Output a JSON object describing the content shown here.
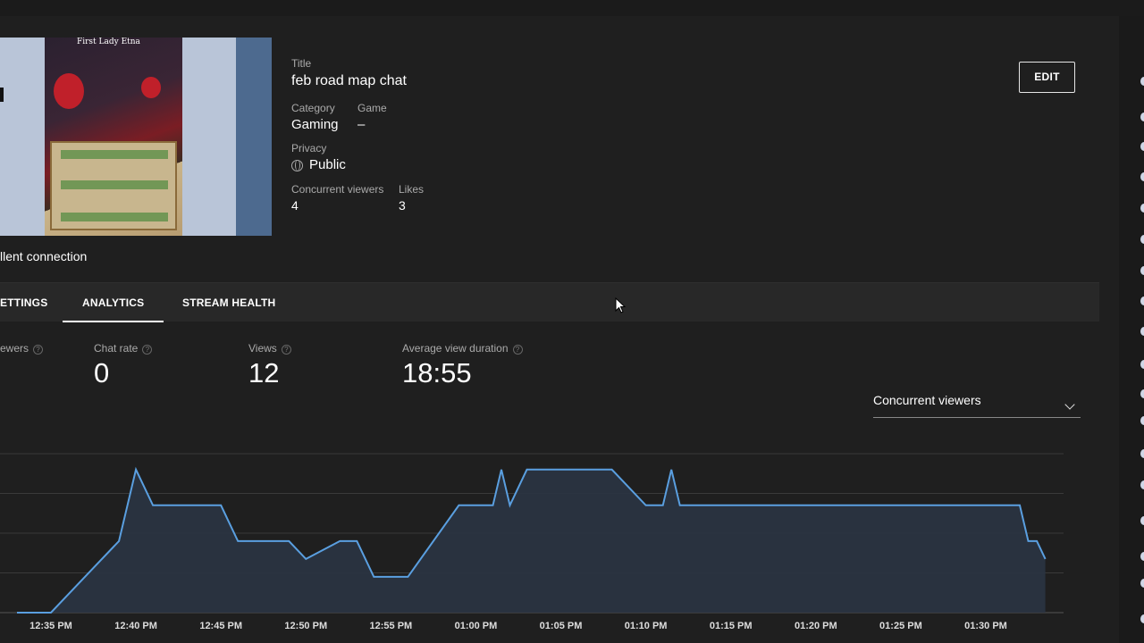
{
  "stream": {
    "title_label": "Title",
    "title": "feb road map chat",
    "category_label": "Category",
    "category": "Gaming",
    "game_label": "Game",
    "game": "–",
    "privacy_label": "Privacy",
    "privacy": "Public",
    "concurrent_label": "Concurrent viewers",
    "concurrent": "4",
    "likes_label": "Likes",
    "likes": "3",
    "edit_label": "EDIT",
    "connection": "llent connection",
    "thumbnail_caption": "First Lady Etna"
  },
  "tabs": [
    {
      "label": "ETTINGS"
    },
    {
      "label": "ANALYTICS",
      "active": true
    },
    {
      "label": "STREAM HEALTH"
    }
  ],
  "stats": [
    {
      "label": "ewers",
      "value": ""
    },
    {
      "label": "Chat rate",
      "value": "0"
    },
    {
      "label": "Views",
      "value": "12"
    },
    {
      "label": "Average view duration",
      "value": "18:55"
    }
  ],
  "metric_select": {
    "selected": "Concurrent viewers"
  },
  "colors": {
    "accent": "#3ea6ff",
    "line": "#5a9fe0",
    "fill": "#2a3442"
  },
  "chart_data": {
    "type": "area",
    "series": [
      {
        "name": "Concurrent viewers",
        "x": [
          "12:33",
          "12:35",
          "12:37",
          "12:39",
          "12:39.5",
          "12:40",
          "12:41",
          "12:44",
          "12:45",
          "12:46",
          "12:48",
          "12:49",
          "12:50",
          "12:52",
          "12:53",
          "12:54",
          "12:56",
          "12:59",
          "1:00",
          "1:01",
          "1:01.5",
          "1:02",
          "1:03",
          "1:07",
          "1:08",
          "1:10",
          "1:11",
          "1:11.5",
          "1:12",
          "1:15",
          "1:18",
          "1:22",
          "1:26",
          "1:30",
          "1:32",
          "1:32.5",
          "1:33",
          "1:33.5"
        ],
        "values": [
          0,
          0,
          1,
          2,
          3,
          4,
          3,
          3,
          3,
          2,
          2,
          2,
          1.5,
          2,
          2,
          1,
          1,
          3,
          3,
          3,
          4,
          3,
          4,
          4,
          4,
          3,
          3,
          4,
          3,
          3,
          3,
          3,
          3,
          3,
          3,
          2,
          2,
          1.5
        ]
      }
    ],
    "x_tick_labels": [
      "12:35 PM",
      "12:40 PM",
      "12:45 PM",
      "12:50 PM",
      "12:55 PM",
      "01:00 PM",
      "01:05 PM",
      "01:10 PM",
      "01:15 PM",
      "01:20 PM",
      "01:25 PM",
      "01:30 PM"
    ],
    "ylim": [
      0,
      4
    ],
    "grid": true
  }
}
